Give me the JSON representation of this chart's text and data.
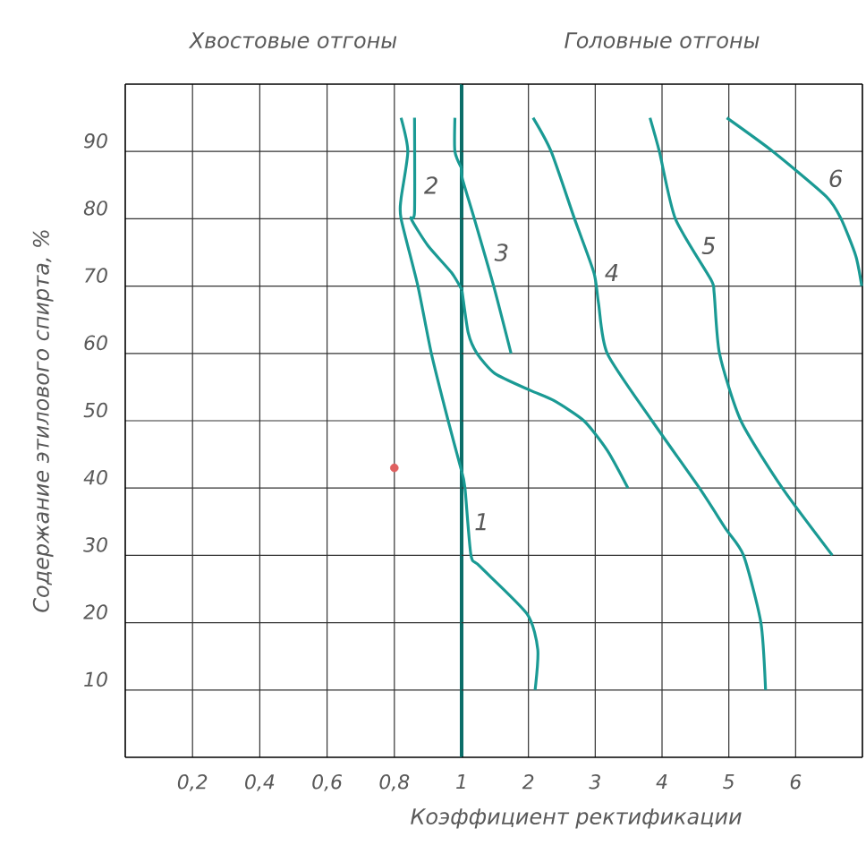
{
  "chart_data": [
    {
      "type": "line",
      "ylabel": "Содержание этилового спирта, %",
      "annotations": [
        "Хвостовые отгоны"
      ],
      "xlim": [
        0,
        1
      ],
      "ylim": [
        0,
        100
      ],
      "xticks": [
        {
          "value": 0.2,
          "label": "0,2"
        },
        {
          "value": 0.4,
          "label": "0,4"
        },
        {
          "value": 0.6,
          "label": "0,6"
        },
        {
          "value": 0.8,
          "label": "0,8"
        }
      ],
      "yticks": [
        10,
        20,
        30,
        40,
        50,
        60,
        70,
        80,
        90
      ],
      "grid": true,
      "ref_lines": [
        {
          "axis": "x",
          "value": 1,
          "color": "#0b6e69"
        }
      ],
      "series": [
        {
          "color": "#1a9a94",
          "x": [
            0.82,
            0.84,
            0.82,
            0.82,
            0.87,
            0.91,
            0.96,
            1.0
          ],
          "values": [
            95,
            90,
            83,
            80,
            70,
            60,
            50,
            42.5
          ]
        },
        {
          "name": "2",
          "color": "#1a9a94",
          "x": [
            0.86,
            0.86,
            0.85,
            0.9,
            0.97,
            1.0
          ],
          "values": [
            95,
            81,
            80,
            76,
            72,
            69.5
          ]
        },
        {
          "color": "#1a9a94",
          "x": [
            0.98,
            0.98,
            1.0
          ],
          "values": [
            95,
            90,
            87.5
          ]
        },
        {
          "type": "scatter",
          "color": "#e06060",
          "x": [
            0.8
          ],
          "values": [
            43
          ]
        }
      ]
    },
    {
      "type": "line",
      "xlabel": "Коэффициент ректификации",
      "annotations": [
        "Головные отгоны"
      ],
      "xlim": [
        1,
        7
      ],
      "ylim": [
        0,
        100
      ],
      "xticks": [
        1,
        2,
        3,
        4,
        5,
        6
      ],
      "yticks": [
        10,
        20,
        30,
        40,
        50,
        60,
        70,
        80,
        90
      ],
      "tick_labels": "x",
      "grid": true,
      "series": [
        {
          "name": "1",
          "color": "#1a9a94",
          "x": [
            1.0,
            1.05,
            1.14,
            1.27,
            1.98,
            2.14,
            2.1
          ],
          "values": [
            42.5,
            40,
            30,
            28.4,
            21.3,
            16,
            10
          ]
        },
        {
          "color": "#1a9a94",
          "x": [
            1.0,
            1.01,
            1.1,
            1.23,
            1.5,
            2.03,
            2.38,
            2.83,
            3.18,
            3.49
          ],
          "values": [
            69.5,
            69,
            63,
            60,
            57,
            54.5,
            53,
            50,
            45.6,
            40
          ]
        },
        {
          "name": "3",
          "color": "#1a9a94",
          "x": [
            1.0,
            1.01,
            1.19,
            1.48,
            1.74
          ],
          "values": [
            87.5,
            86,
            80,
            70,
            60
          ]
        },
        {
          "name": "4",
          "color": "#1a9a94",
          "x": [
            2.07,
            2.34,
            2.69,
            2.98,
            3.05,
            3.18,
            3.85,
            4.56,
            4.95,
            5.22,
            5.48,
            5.55
          ],
          "values": [
            95,
            90,
            80,
            72,
            67.4,
            60,
            50,
            40,
            34,
            30,
            20,
            10
          ]
        },
        {
          "name": "5",
          "color": "#1a9a94",
          "x": [
            3.82,
            3.96,
            4.2,
            4.73,
            4.78,
            4.86,
            5.18,
            5.8,
            6.55
          ],
          "values": [
            95,
            90,
            80,
            71,
            69,
            60,
            50,
            40,
            30
          ]
        },
        {
          "name": "6",
          "color": "#1a9a94",
          "x": [
            4.97,
            5.66,
            6.46,
            6.68,
            6.9,
            6.99
          ],
          "values": [
            95,
            90,
            83.3,
            80,
            74.5,
            70
          ]
        }
      ]
    }
  ]
}
